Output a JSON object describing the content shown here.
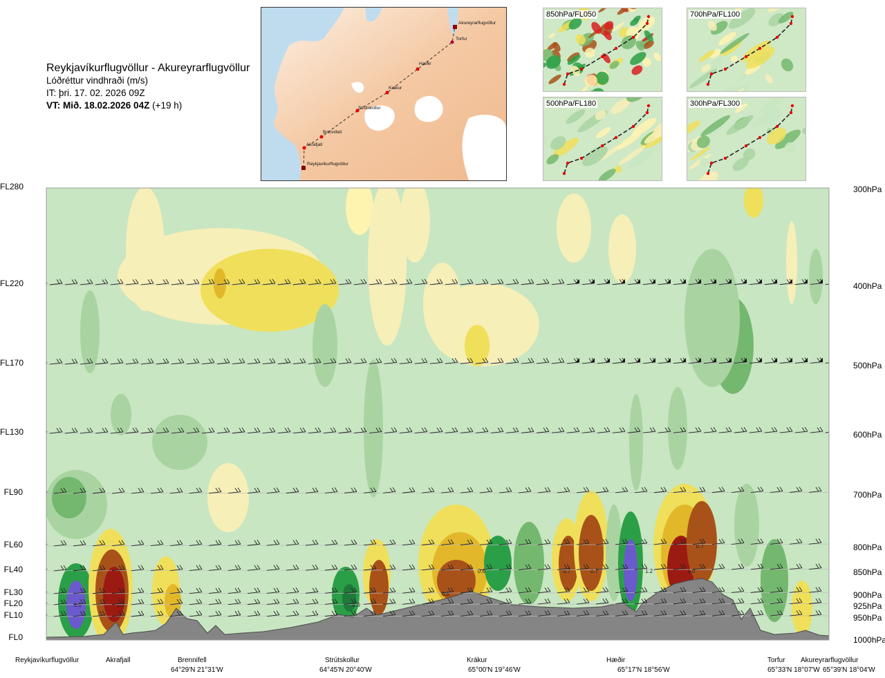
{
  "header": {
    "title": "Reykjavíkurflugvöllur - Akureyrarflugvöllur",
    "quantity": "Lóðréttur vindhraði (m/s)",
    "it": "IT: þri. 17. 02. 2026 09Z",
    "vt_bold": "VT: Mið. 18.02.2026 04Z",
    "vt_extra": "(+19 h)"
  },
  "route_map": {
    "places": [
      {
        "name": "Akureyrarflugvöllur"
      },
      {
        "name": "Torfur"
      },
      {
        "name": "Hæðir"
      },
      {
        "name": "Krákur"
      },
      {
        "name": "Strútskollur"
      },
      {
        "name": "Brennifell"
      },
      {
        "name": "Akrafjall"
      },
      {
        "name": "Reykjavíkurflugvöllur"
      }
    ]
  },
  "thumbnails": [
    {
      "label": "850hPa/FL050"
    },
    {
      "label": "700hPa/FL100"
    },
    {
      "label": "500hPa/FL180"
    },
    {
      "label": "300hPa/FL300"
    }
  ],
  "chart_data": {
    "type": "heatmap",
    "title": "Reykjavíkurflugvöllur - Akureyrarflugvöllur",
    "variable": "Lóðréttur vindhraði (m/s)",
    "flight_levels": [
      "FL280",
      "FL220",
      "FL170",
      "FL130",
      "FL90",
      "FL60",
      "FL40",
      "FL30",
      "FL20",
      "FL10",
      "FL0"
    ],
    "pressure_levels": [
      "300hPa",
      "400hPa",
      "500hPa",
      "600hPa",
      "700hPa",
      "800hPa",
      "850hPa",
      "900hPa",
      "925hPa",
      "950hPa",
      "1000hPa"
    ],
    "stations": [
      {
        "name": "Reykjavíkurflugvöllur",
        "coord": ""
      },
      {
        "name": "Akrafjall",
        "coord": ""
      },
      {
        "name": "Brennifell",
        "coord": "64°29'N 21°31'W"
      },
      {
        "name": "Strútskollur",
        "coord": "64°45'N 20°40'W"
      },
      {
        "name": "Krákur",
        "coord": "65°00'N 19°46'W"
      },
      {
        "name": "Hæðir",
        "coord": "65°17'N 18°56'W"
      },
      {
        "name": "Torfur",
        "coord": "65°33'N 18°07'W"
      },
      {
        "name": "Akureyrarflugvöllur",
        "coord": "65°39'N 18°04'W"
      }
    ],
    "color_scale": {
      "strong_sink": "#c8e6c2",
      "weak_sink": "#a9d4a2",
      "mid_sink": "#74b86f",
      "very_strong_sink": "#2b9f47",
      "core_sink": "#6a5acd",
      "weak_rise": "#fff3b0",
      "rise": "#f0df5a",
      "mid_rise": "#e2b82a",
      "strong_rise": "#a8521a",
      "core_rise": "#9b1a12",
      "terrain": "#858585"
    },
    "annotations": [
      {
        "label": "1.0",
        "x": 0.04,
        "level": "FL20"
      },
      {
        "label": "1.0",
        "x": 0.095,
        "level": "FL20"
      },
      {
        "label": "0.8",
        "x": 0.396,
        "level": "FL20"
      },
      {
        "label": "0.6",
        "x": 0.51,
        "level": "FL30"
      },
      {
        "label": "0.6",
        "x": 0.556,
        "level": "FL40"
      },
      {
        "label": "0.7",
        "x": 0.665,
        "level": "FL40"
      },
      {
        "label": "0.7",
        "x": 0.7,
        "level": "FL40"
      },
      {
        "label": "1.2",
        "x": 0.77,
        "level": "FL40"
      },
      {
        "label": "1.0",
        "x": 0.824,
        "level": "FL40"
      },
      {
        "label": "0.7",
        "x": 0.835,
        "level": "FL60"
      }
    ]
  }
}
